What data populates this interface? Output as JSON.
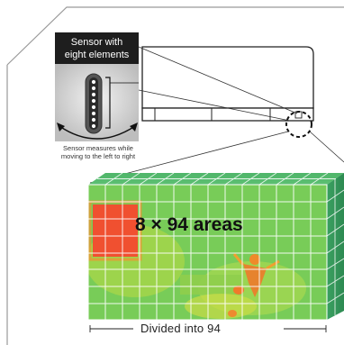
{
  "sensor": {
    "title_line1": "Sensor with",
    "title_line2": "eight elements",
    "caption_line1": "Sensor measures while",
    "caption_line2": "moving to the left to right"
  },
  "grid": {
    "areas_label": "8 × 94 areas",
    "divided_label": "Divided into 94",
    "rows": 8,
    "columns": 94
  },
  "colors": {
    "grid_green": "#6cc85a",
    "hot_red": "#f05030",
    "sensor_body": "#d4d4d4",
    "dark_panel": "#1e1e1e"
  }
}
